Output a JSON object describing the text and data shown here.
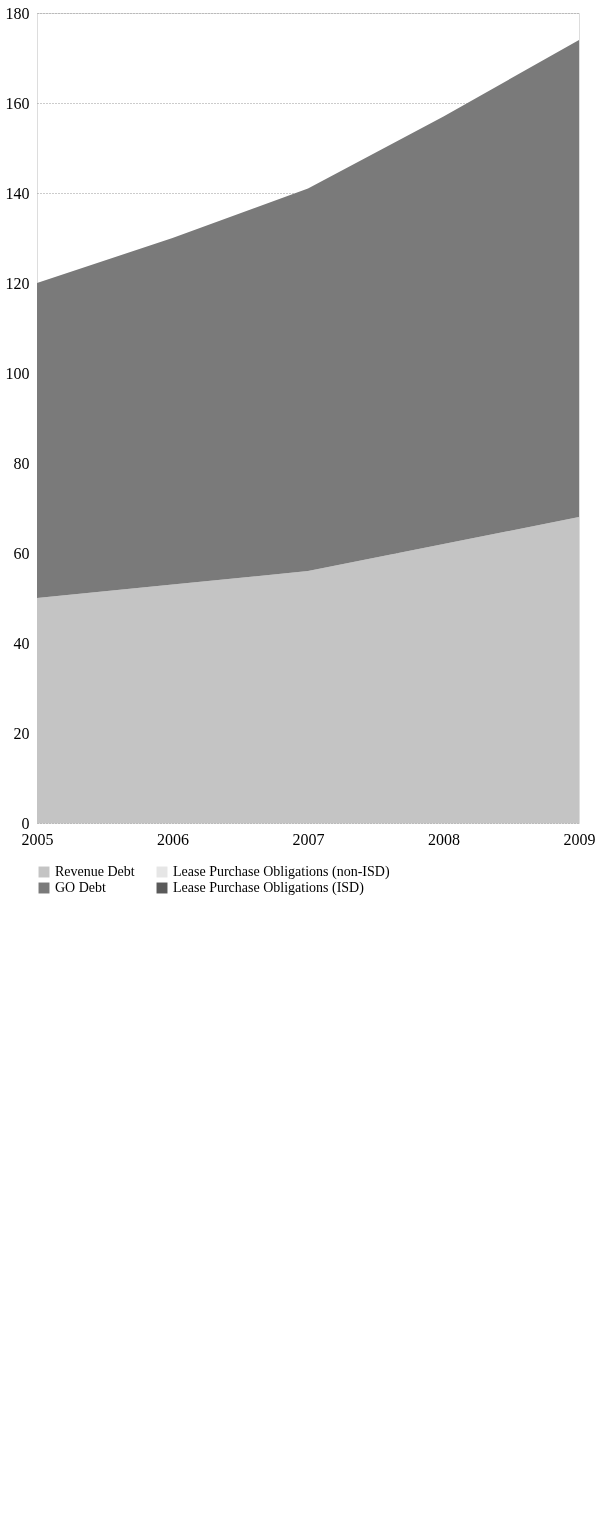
{
  "chart_data": {
    "type": "area",
    "stacked": true,
    "x": [
      2005,
      2006,
      2007,
      2008,
      2009
    ],
    "xlim": [
      2005,
      2009
    ],
    "xticks": [
      2005,
      2006,
      2007,
      2008,
      2009
    ],
    "ylim": [
      0,
      180
    ],
    "yticks": [
      0,
      20,
      40,
      60,
      80,
      100,
      120,
      140,
      160,
      180
    ],
    "grid": "y",
    "legend": "bottom",
    "series": [
      {
        "name": "Revenue Debt",
        "color": "#c4c4c4",
        "values": [
          50,
          53,
          56,
          62,
          68
        ]
      },
      {
        "name": "Lease Purchase Obligations (non-ISD)",
        "color": "#e6e6e6",
        "values": [
          null,
          null,
          null,
          null,
          null
        ]
      },
      {
        "name": "GO Debt",
        "color": "#7a7a7a",
        "values": [
          70,
          77,
          85,
          95,
          106
        ]
      },
      {
        "name": "Lease Purchase Obligations (ISD)",
        "color": "#5a5a5a",
        "values": [
          null,
          null,
          null,
          null,
          null
        ]
      }
    ]
  }
}
